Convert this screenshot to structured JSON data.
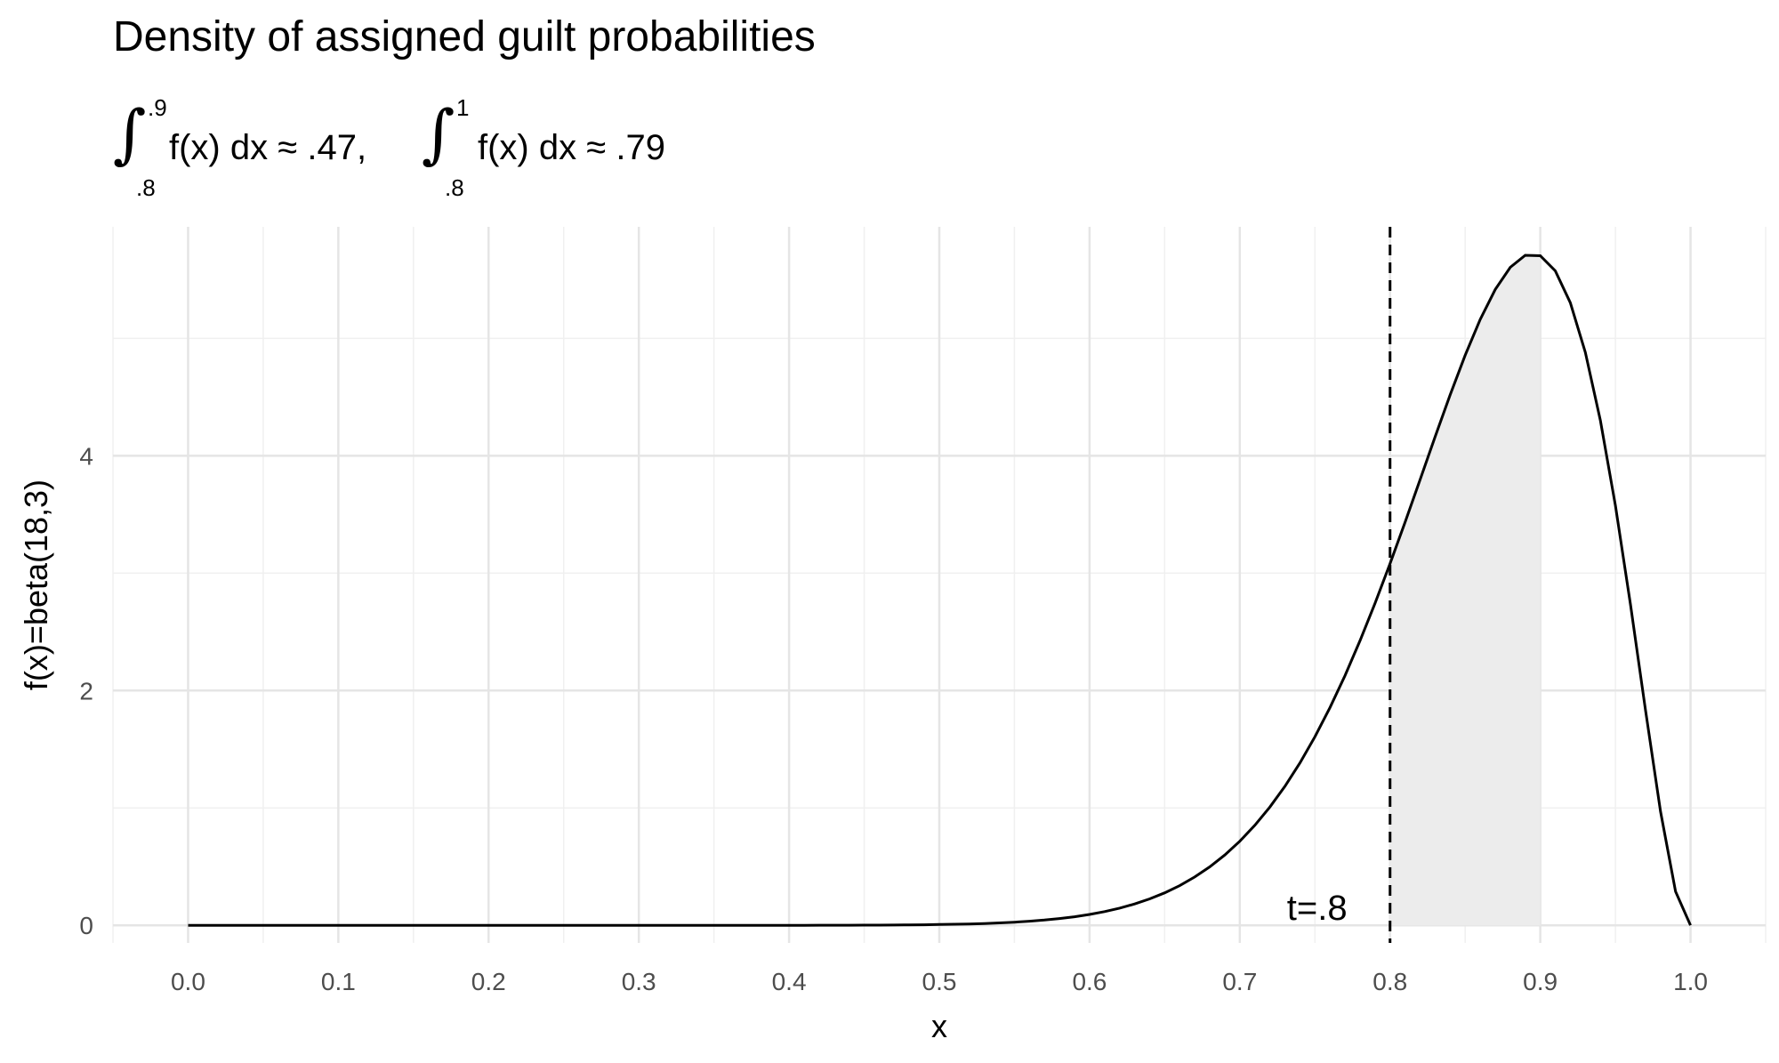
{
  "chart_data": {
    "type": "area",
    "title": "Density of assigned guilt probabilities",
    "subtitle": {
      "integrals": [
        {
          "lower": ".8",
          "upper": ".9",
          "body": "f(x) dx",
          "approx": "≈",
          "value": ".47",
          "separator": ","
        },
        {
          "lower": ".8",
          "upper": "1",
          "body": "f(x) dx",
          "approx": "≈",
          "value": ".79",
          "separator": ""
        }
      ]
    },
    "xlabel": "x",
    "ylabel": "f(x)=beta(18,3)",
    "xlim": [
      -0.05,
      1.05
    ],
    "ylim": [
      -0.15,
      5.95
    ],
    "x_ticks": [
      "0.0",
      "0.1",
      "0.2",
      "0.3",
      "0.4",
      "0.5",
      "0.6",
      "0.7",
      "0.8",
      "0.9",
      "1.0"
    ],
    "y_ticks": [
      "0",
      "2",
      "4"
    ],
    "grid": true,
    "series": [
      {
        "distribution": "beta",
        "alpha": 18,
        "beta": 3,
        "x": [
          0.0,
          0.1,
          0.2,
          0.3,
          0.4,
          0.45,
          0.5,
          0.55,
          0.6,
          0.65,
          0.7,
          0.75,
          0.8,
          0.85,
          0.875,
          0.9,
          0.925,
          0.95,
          0.975,
          0.99,
          1.0
        ],
        "y": [
          0.0,
          0.0,
          0.0,
          0.0,
          0.0,
          0.002,
          0.01,
          0.036,
          0.113,
          0.32,
          0.78,
          1.7,
          3.1,
          4.75,
          5.4,
          5.7,
          5.35,
          4.05,
          1.85,
          0.3,
          0.0
        ]
      }
    ],
    "shaded_region": {
      "from": 0.8,
      "to": 0.9,
      "color": "#ececec"
    },
    "reference_line": {
      "x": 0.8,
      "style": "dashed",
      "label": "t=.8"
    },
    "colors": {
      "curve": "#000000",
      "grid_major": "#e5e5e5",
      "grid_minor": "#f0f0f0",
      "shade": "#ececec",
      "tick_text": "#4d4d4d"
    }
  }
}
